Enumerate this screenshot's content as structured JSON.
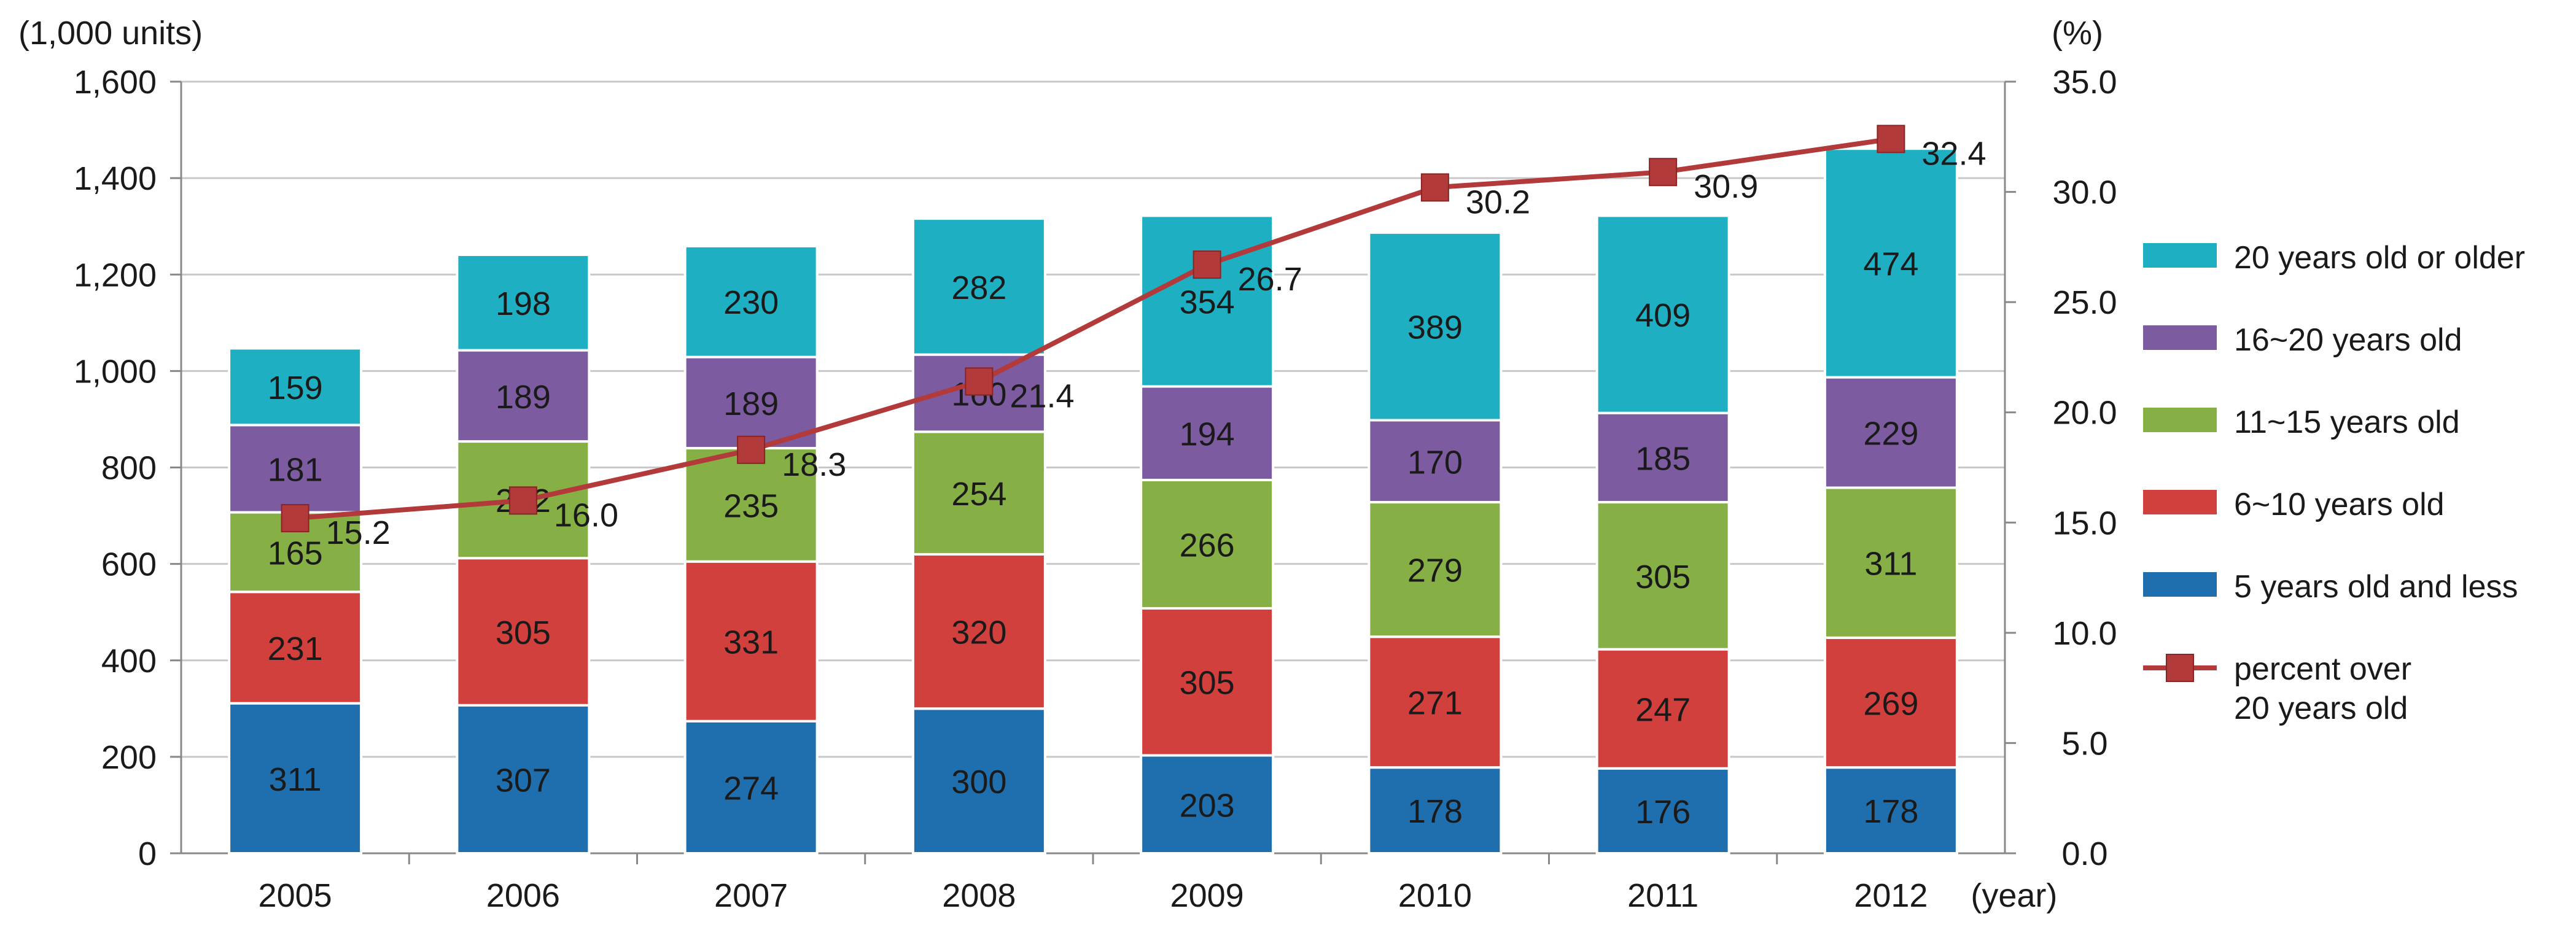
{
  "chart_data": {
    "type": "bar",
    "stacked": true,
    "title": "",
    "left_axis_unit": "(1,000 units)",
    "right_axis_unit": "(%)",
    "x_unit": "(year)",
    "categories": [
      "2005",
      "2006",
      "2007",
      "2008",
      "2009",
      "2010",
      "2011",
      "2012"
    ],
    "ylim": [
      0,
      1600
    ],
    "yticks": [
      "0",
      "200",
      "400",
      "600",
      "800",
      "1,000",
      "1,200",
      "1,400",
      "1,600"
    ],
    "y2lim": [
      0,
      35
    ],
    "y2ticks": [
      "0.0",
      "5.0",
      "10.0",
      "15.0",
      "20.0",
      "25.0",
      "30.0",
      "35.0"
    ],
    "grid": true,
    "legend_position": "right",
    "series": [
      {
        "name": "5 years old and less",
        "color": "#1F6FAE",
        "values": [
          311,
          307,
          274,
          300,
          203,
          178,
          176,
          178
        ]
      },
      {
        "name": "6~10 years old",
        "color": "#D2403E",
        "values": [
          231,
          305,
          331,
          320,
          305,
          271,
          247,
          269
        ]
      },
      {
        "name": "11~15 years old",
        "color": "#86AF46",
        "values": [
          165,
          242,
          235,
          254,
          266,
          279,
          305,
          311
        ]
      },
      {
        "name": "16~20 years old",
        "color": "#7C5BA1",
        "values": [
          181,
          189,
          189,
          160,
          194,
          170,
          185,
          229
        ]
      },
      {
        "name": "20 years old or older",
        "color": "#1FAFC2",
        "values": [
          159,
          198,
          230,
          282,
          354,
          389,
          409,
          474
        ]
      }
    ],
    "line_series": {
      "name_line1": "percent over",
      "name_line2": "20 years old",
      "color": "#B33A3A",
      "values": [
        15.2,
        16.0,
        18.3,
        21.4,
        26.7,
        30.2,
        30.9,
        32.4
      ],
      "labels": [
        "15.2",
        "16.0",
        "18.3",
        "21.4",
        "26.7",
        "30.2",
        "30.9",
        "32.4"
      ]
    }
  }
}
